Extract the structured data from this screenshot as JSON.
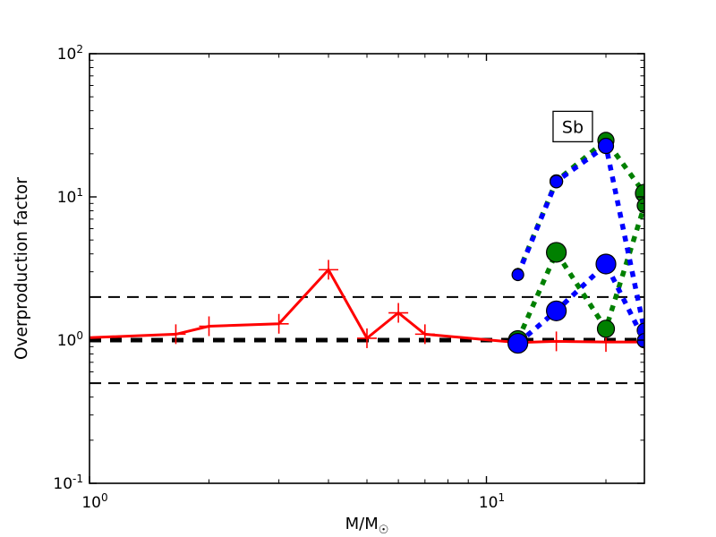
{
  "figure": {
    "background": "#ffffff"
  },
  "chart_data": {
    "type": "line",
    "title": "",
    "xlabel": "M/M",
    "xlabel_subscript": "☉",
    "ylabel": "Overproduction factor",
    "x_scale": "log",
    "y_scale": "log",
    "xlim": [
      1,
      25
    ],
    "ylim": [
      0.1,
      100
    ],
    "grid": false,
    "x_ticks": [
      {
        "value": 1,
        "label": "10^0"
      },
      {
        "value": 10,
        "label": "10^1"
      }
    ],
    "y_ticks": [
      {
        "value": 100,
        "label": "10^2"
      },
      {
        "value": 10,
        "label": "10^1"
      },
      {
        "value": 1,
        "label": "10^0"
      },
      {
        "value": 0.1,
        "label": "10^-1"
      }
    ],
    "annotation": {
      "text": "Sb",
      "x": 16.5,
      "y": 31
    },
    "reference_lines": [
      {
        "y": 2,
        "color": "#000000",
        "width": 2,
        "dash": "13 8",
        "note": "thin dashed"
      },
      {
        "y": 0.5,
        "color": "#000000",
        "width": 2,
        "dash": "13 8",
        "note": "thin dashed"
      },
      {
        "y": 1,
        "color": "#000000",
        "width": 5,
        "dash": "13 10",
        "note": "thick dashed"
      }
    ],
    "series": [
      {
        "name": "red-solid-plus-markers",
        "color": "#ff0000",
        "style": "solid",
        "width": 3,
        "dash": null,
        "marker": "plus",
        "marker_half": 11,
        "points": [
          {
            "x": 1,
            "y": 1.04,
            "marker": false
          },
          {
            "x": 1.65,
            "y": 1.1,
            "marker": true
          },
          {
            "x": 2,
            "y": 1.25,
            "marker": true
          },
          {
            "x": 3,
            "y": 1.3,
            "marker": true
          },
          {
            "x": 4,
            "y": 3.1,
            "marker": true
          },
          {
            "x": 5,
            "y": 1.03,
            "marker": true
          },
          {
            "x": 6,
            "y": 1.55,
            "marker": true
          },
          {
            "x": 7,
            "y": 1.1,
            "marker": true
          },
          {
            "x": 12,
            "y": 0.96,
            "marker": true
          },
          {
            "x": 15,
            "y": 0.98,
            "marker": true
          },
          {
            "x": 20,
            "y": 0.97,
            "marker": true
          },
          {
            "x": 25,
            "y": 0.97,
            "marker": true
          }
        ]
      },
      {
        "name": "green-dotted-upper-circles",
        "color": "#008000",
        "style": "dotted",
        "width": 5.5,
        "dash": "6.5 7",
        "marker": "circle",
        "points": [
          {
            "x": 12,
            "y": 2.9,
            "r": 6
          },
          {
            "x": 15,
            "y": 12.9,
            "r": 7
          },
          {
            "x": 20,
            "y": 24.8,
            "r": 9
          },
          {
            "x": 25,
            "y": 10.6,
            "r": 10
          }
        ]
      },
      {
        "name": "green-dotted-lower-circles",
        "color": "#008000",
        "style": "dotted",
        "width": 5.5,
        "dash": "6.5 7",
        "marker": "circle",
        "points": [
          {
            "x": 12,
            "y": 1.0,
            "r": 10.5
          },
          {
            "x": 15,
            "y": 4.1,
            "r": 11
          },
          {
            "x": 20,
            "y": 1.2,
            "r": 9.5
          },
          {
            "x": 25,
            "y": 8.7,
            "r": 8
          }
        ]
      },
      {
        "name": "blue-dotted-upper-circles",
        "color": "#0000ff",
        "style": "dotted",
        "width": 5.5,
        "dash": "6.5 7",
        "marker": "circle",
        "points": [
          {
            "x": 12,
            "y": 2.86,
            "r": 6.5
          },
          {
            "x": 15,
            "y": 12.8,
            "r": 7
          },
          {
            "x": 20,
            "y": 22.7,
            "r": 8.5
          },
          {
            "x": 25,
            "y": 1.17,
            "r": 8
          }
        ]
      },
      {
        "name": "blue-dotted-lower-circles",
        "color": "#0000ff",
        "style": "dotted",
        "width": 5.5,
        "dash": "6.5 7",
        "marker": "circle",
        "points": [
          {
            "x": 12,
            "y": 0.95,
            "r": 11
          },
          {
            "x": 15,
            "y": 1.6,
            "r": 11
          },
          {
            "x": 20,
            "y": 3.4,
            "r": 11
          },
          {
            "x": 25,
            "y": 0.99,
            "r": 8
          }
        ]
      }
    ]
  }
}
